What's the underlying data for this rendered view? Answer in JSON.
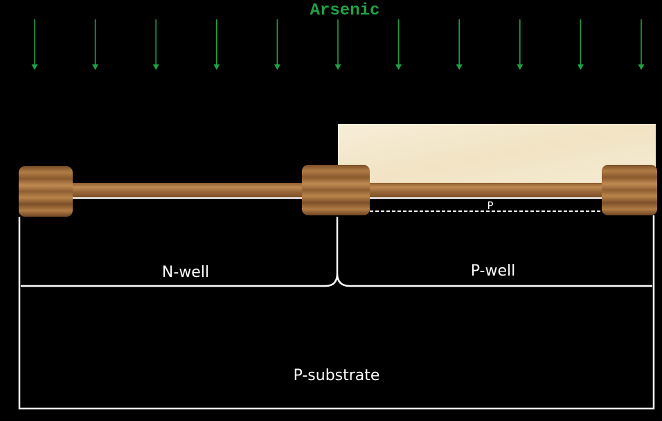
{
  "implant": {
    "species": "Arsenic",
    "arrow_count": 11,
    "color": "#1fa245"
  },
  "regions": {
    "n_well": "N-well",
    "p_well": "P-well",
    "p_substrate": "P-substrate",
    "p_implant": "P"
  },
  "colors": {
    "background": "#000000",
    "outline": "#ffffff",
    "oxide": "#9b6a3a",
    "oxide_dark": "#6e4521",
    "photoresist": "#f5ead2"
  }
}
